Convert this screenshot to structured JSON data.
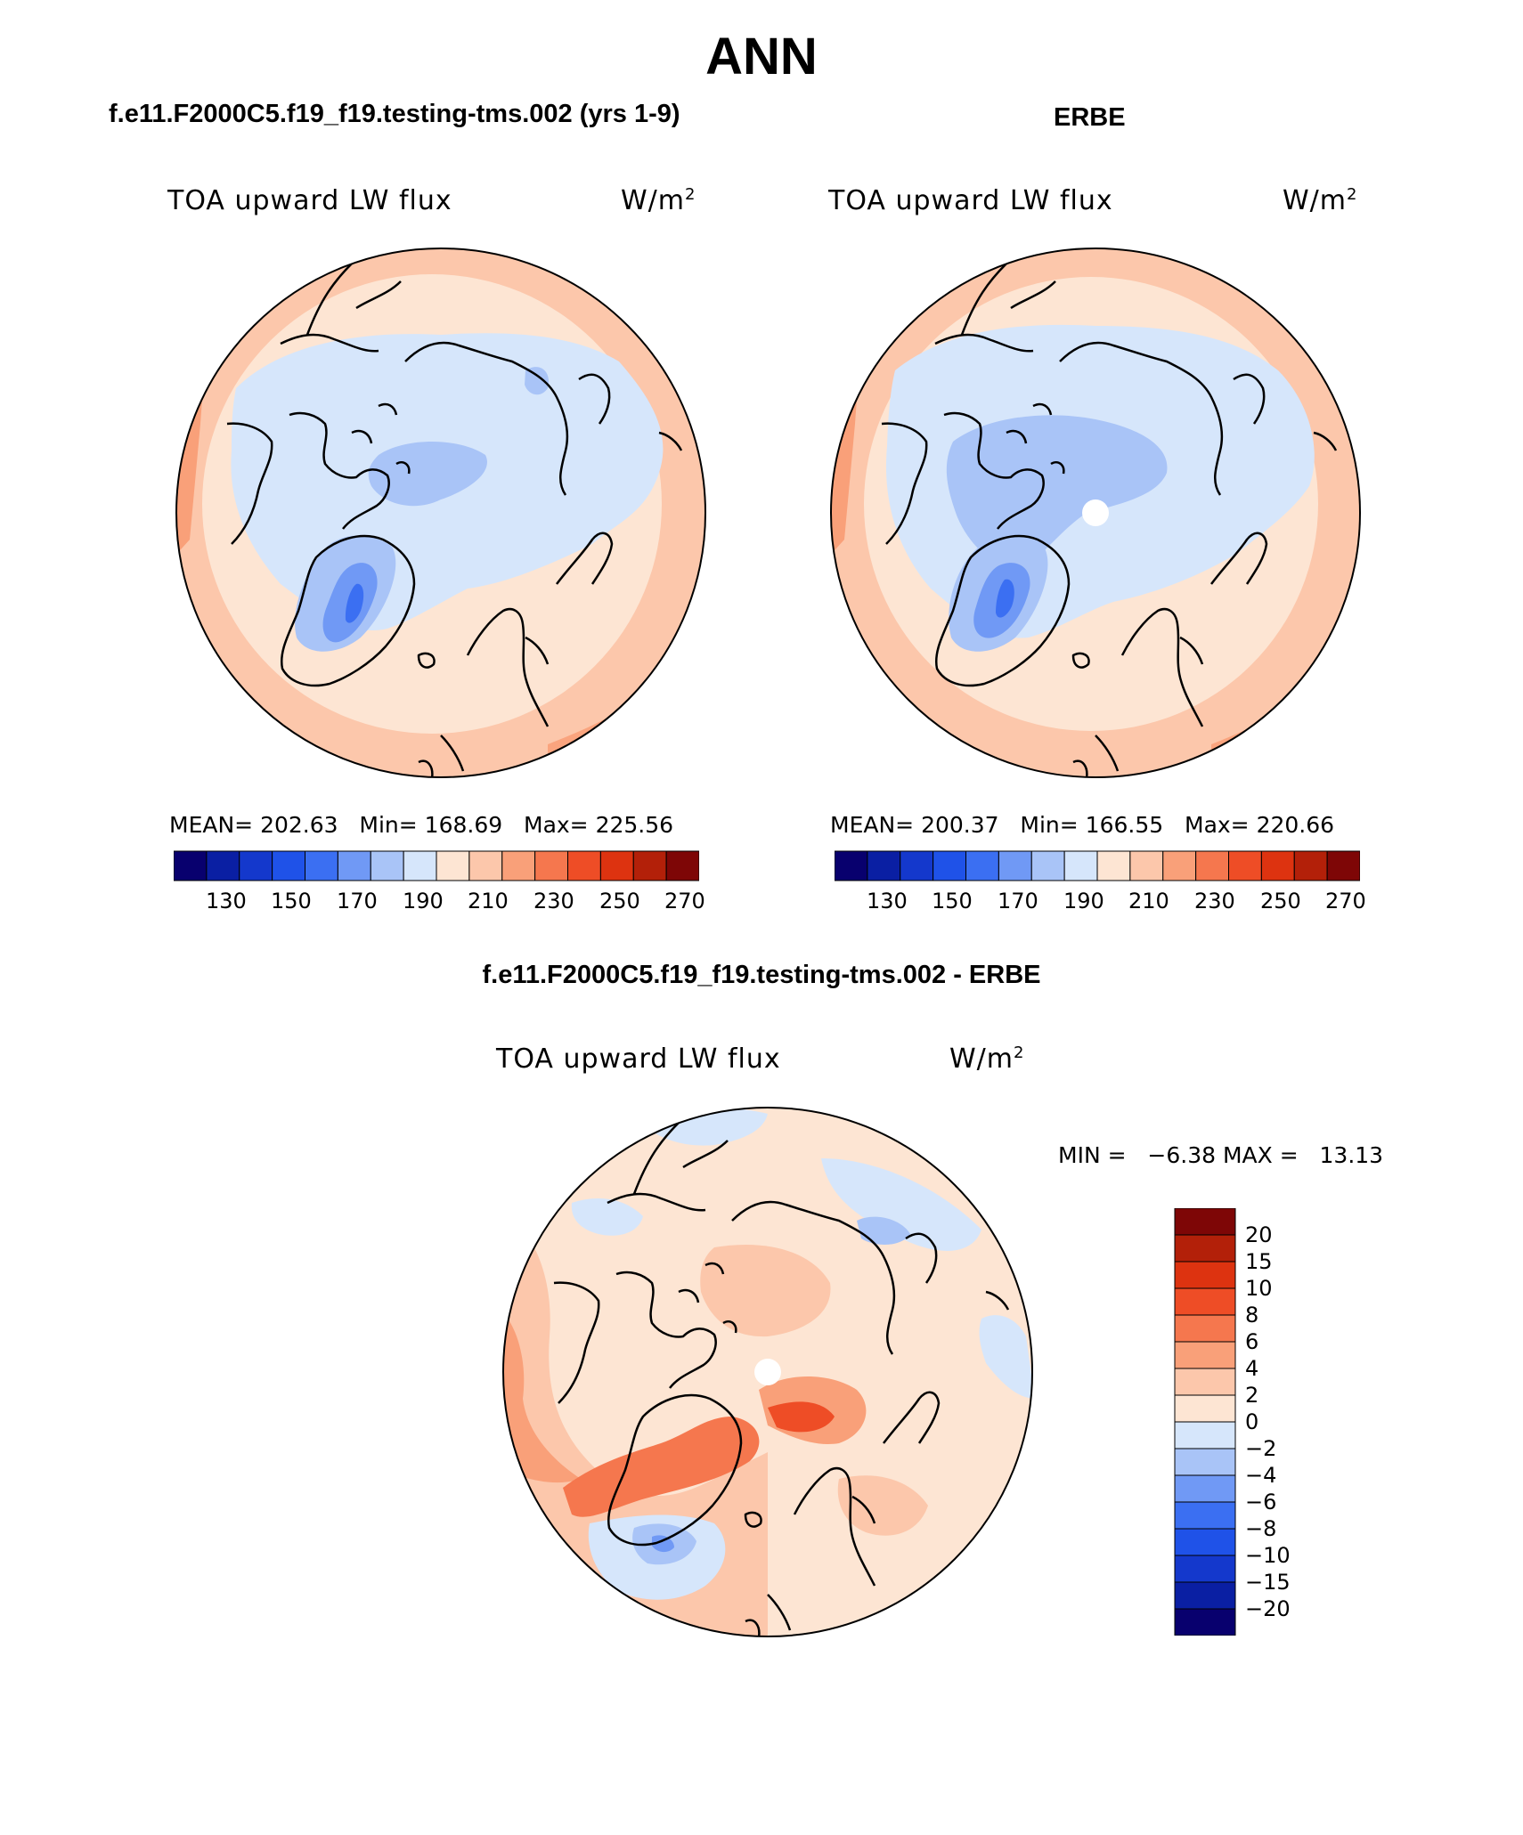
{
  "title": "ANN",
  "panels": [
    {
      "heading": "f.e11.F2000C5.f19_f19.testing-tms.002 (yrs 1-9)",
      "variable": "TOA upward LW flux",
      "units_base": "W/m",
      "units_exp": "2",
      "mean_label": "MEAN=",
      "mean": "202.63",
      "min_label": "Min=",
      "min": "168.69",
      "max_label": "Max=",
      "max": "225.56"
    },
    {
      "heading": "ERBE",
      "variable": "TOA upward LW flux",
      "units_base": "W/m",
      "units_exp": "2",
      "mean_label": "MEAN=",
      "mean": "200.37",
      "min_label": "Min=",
      "min": "166.55",
      "max_label": "Max=",
      "max": "220.66"
    }
  ],
  "abs_colorbar": {
    "colors": [
      "#08006e",
      "#0a1fa3",
      "#1438cc",
      "#1f52e8",
      "#3b6ff2",
      "#7099f5",
      "#a9c4f7",
      "#d6e6fb",
      "#fde5d3",
      "#fcc7ab",
      "#f9a079",
      "#f5774e",
      "#ee4d26",
      "#dd3310",
      "#b32009",
      "#7e0606"
    ],
    "tick_labels": [
      "130",
      "150",
      "170",
      "190",
      "210",
      "230",
      "250",
      "270"
    ]
  },
  "difference_panel": {
    "heading": "f.e11.F2000C5.f19_f19.testing-tms.002 - ERBE",
    "variable": "TOA upward LW flux",
    "units_base": "W/m",
    "units_exp": "2",
    "min_label": "MIN =",
    "min": "−6.38",
    "max_label": "MAX =",
    "max": "13.13"
  },
  "diff_colorbar": {
    "colors": [
      "#7e0606",
      "#b32009",
      "#dd3310",
      "#ee4d26",
      "#f5774e",
      "#f9a079",
      "#fcc7ab",
      "#fde5d3",
      "#d6e6fb",
      "#a9c4f7",
      "#7099f5",
      "#3b6ff2",
      "#1f52e8",
      "#1438cc",
      "#0a1fa3",
      "#08006e"
    ],
    "tick_labels": [
      "20",
      "15",
      "10",
      "8",
      "6",
      "4",
      "2",
      "0",
      "−2",
      "−4",
      "−6",
      "−8",
      "−10",
      "−15",
      "−20"
    ]
  }
}
